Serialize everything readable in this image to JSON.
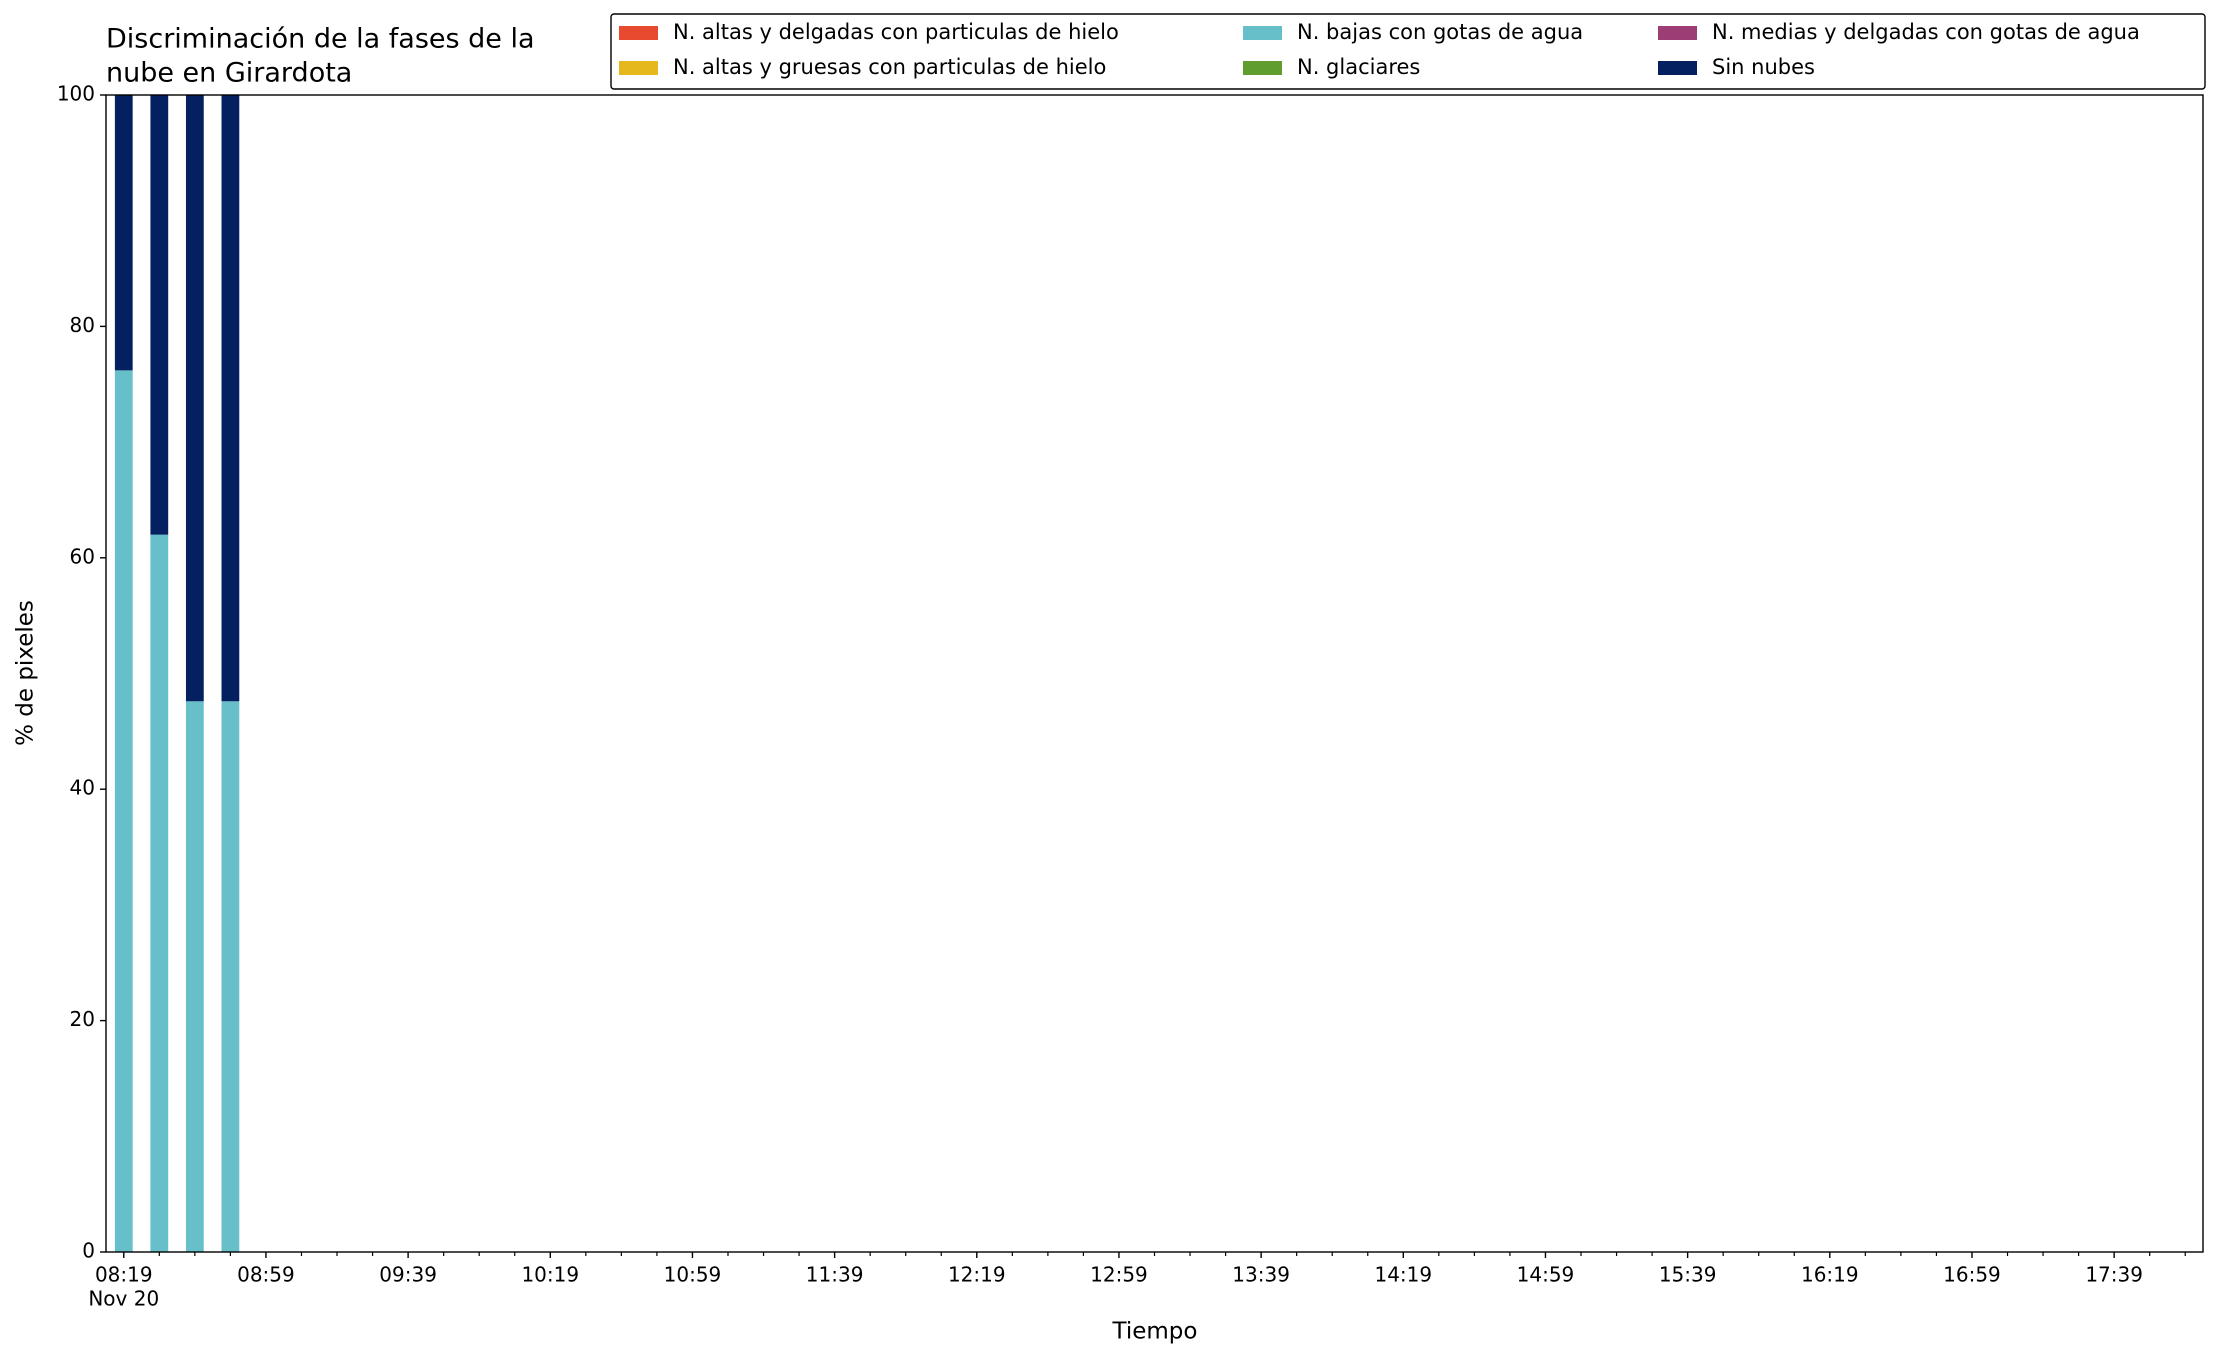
{
  "chart_data": {
    "type": "bar",
    "stacked": true,
    "title": [
      "Discriminación de la fases de la",
      "nube en Girardota"
    ],
    "x_label": "Tiempo",
    "y_label": "% de pixeles",
    "x": [
      "08:19",
      "08:29",
      "08:39",
      "08:49"
    ],
    "bar_width_minutes": 5,
    "series": [
      {
        "name": "N. altas y delgadas con particulas de hielo",
        "color": "#e84a2f",
        "values": [
          0,
          0,
          0,
          0
        ]
      },
      {
        "name": "N. altas y gruesas con particulas de hielo",
        "color": "#e5b91d",
        "values": [
          0,
          0,
          0,
          0
        ]
      },
      {
        "name": "N. bajas con gotas de agua",
        "color": "#67bfca",
        "values": [
          76.2,
          62,
          47.6,
          47.6
        ]
      },
      {
        "name": "N. glaciares",
        "color": "#5f9e2e",
        "values": [
          0,
          0,
          0,
          0
        ]
      },
      {
        "name": "N. medias y delgadas con gotas de agua",
        "color": "#9c3e75",
        "values": [
          0,
          0,
          0,
          0
        ]
      },
      {
        "name": "Sin nubes",
        "color": "#042060",
        "values": [
          23.8,
          38,
          52.4,
          52.4
        ]
      }
    ],
    "xlim": [
      "08:14",
      "18:04"
    ],
    "xticks": [
      {
        "value": "08:19",
        "label": "08:19",
        "sublabel": "Nov 20"
      },
      "08:59",
      "09:39",
      "10:19",
      "10:59",
      "11:39",
      "12:19",
      "12:59",
      "13:39",
      "14:19",
      "14:59",
      "15:39",
      "16:19",
      "16:59",
      "17:39"
    ],
    "xminor_ticks": [
      "08:29",
      "08:39",
      "08:49",
      "09:09",
      "09:19",
      "09:29",
      "09:49",
      "09:59",
      "10:09",
      "10:29",
      "10:39",
      "10:49",
      "11:09",
      "11:19",
      "11:29",
      "11:49",
      "11:59",
      "12:09",
      "12:29",
      "12:39",
      "12:49",
      "13:09",
      "13:19",
      "13:29",
      "13:49",
      "13:59",
      "14:09",
      "14:29",
      "14:39",
      "14:49",
      "15:09",
      "15:19",
      "15:29",
      "15:49",
      "15:59",
      "16:09",
      "16:29",
      "16:39",
      "16:49",
      "17:09",
      "17:19",
      "17:29",
      "17:49",
      "17:59"
    ],
    "ylim": [
      0,
      100
    ],
    "yticks": [
      0,
      20,
      40,
      60,
      80,
      100
    ],
    "legend": "upper right",
    "legend_columns": 3
  }
}
